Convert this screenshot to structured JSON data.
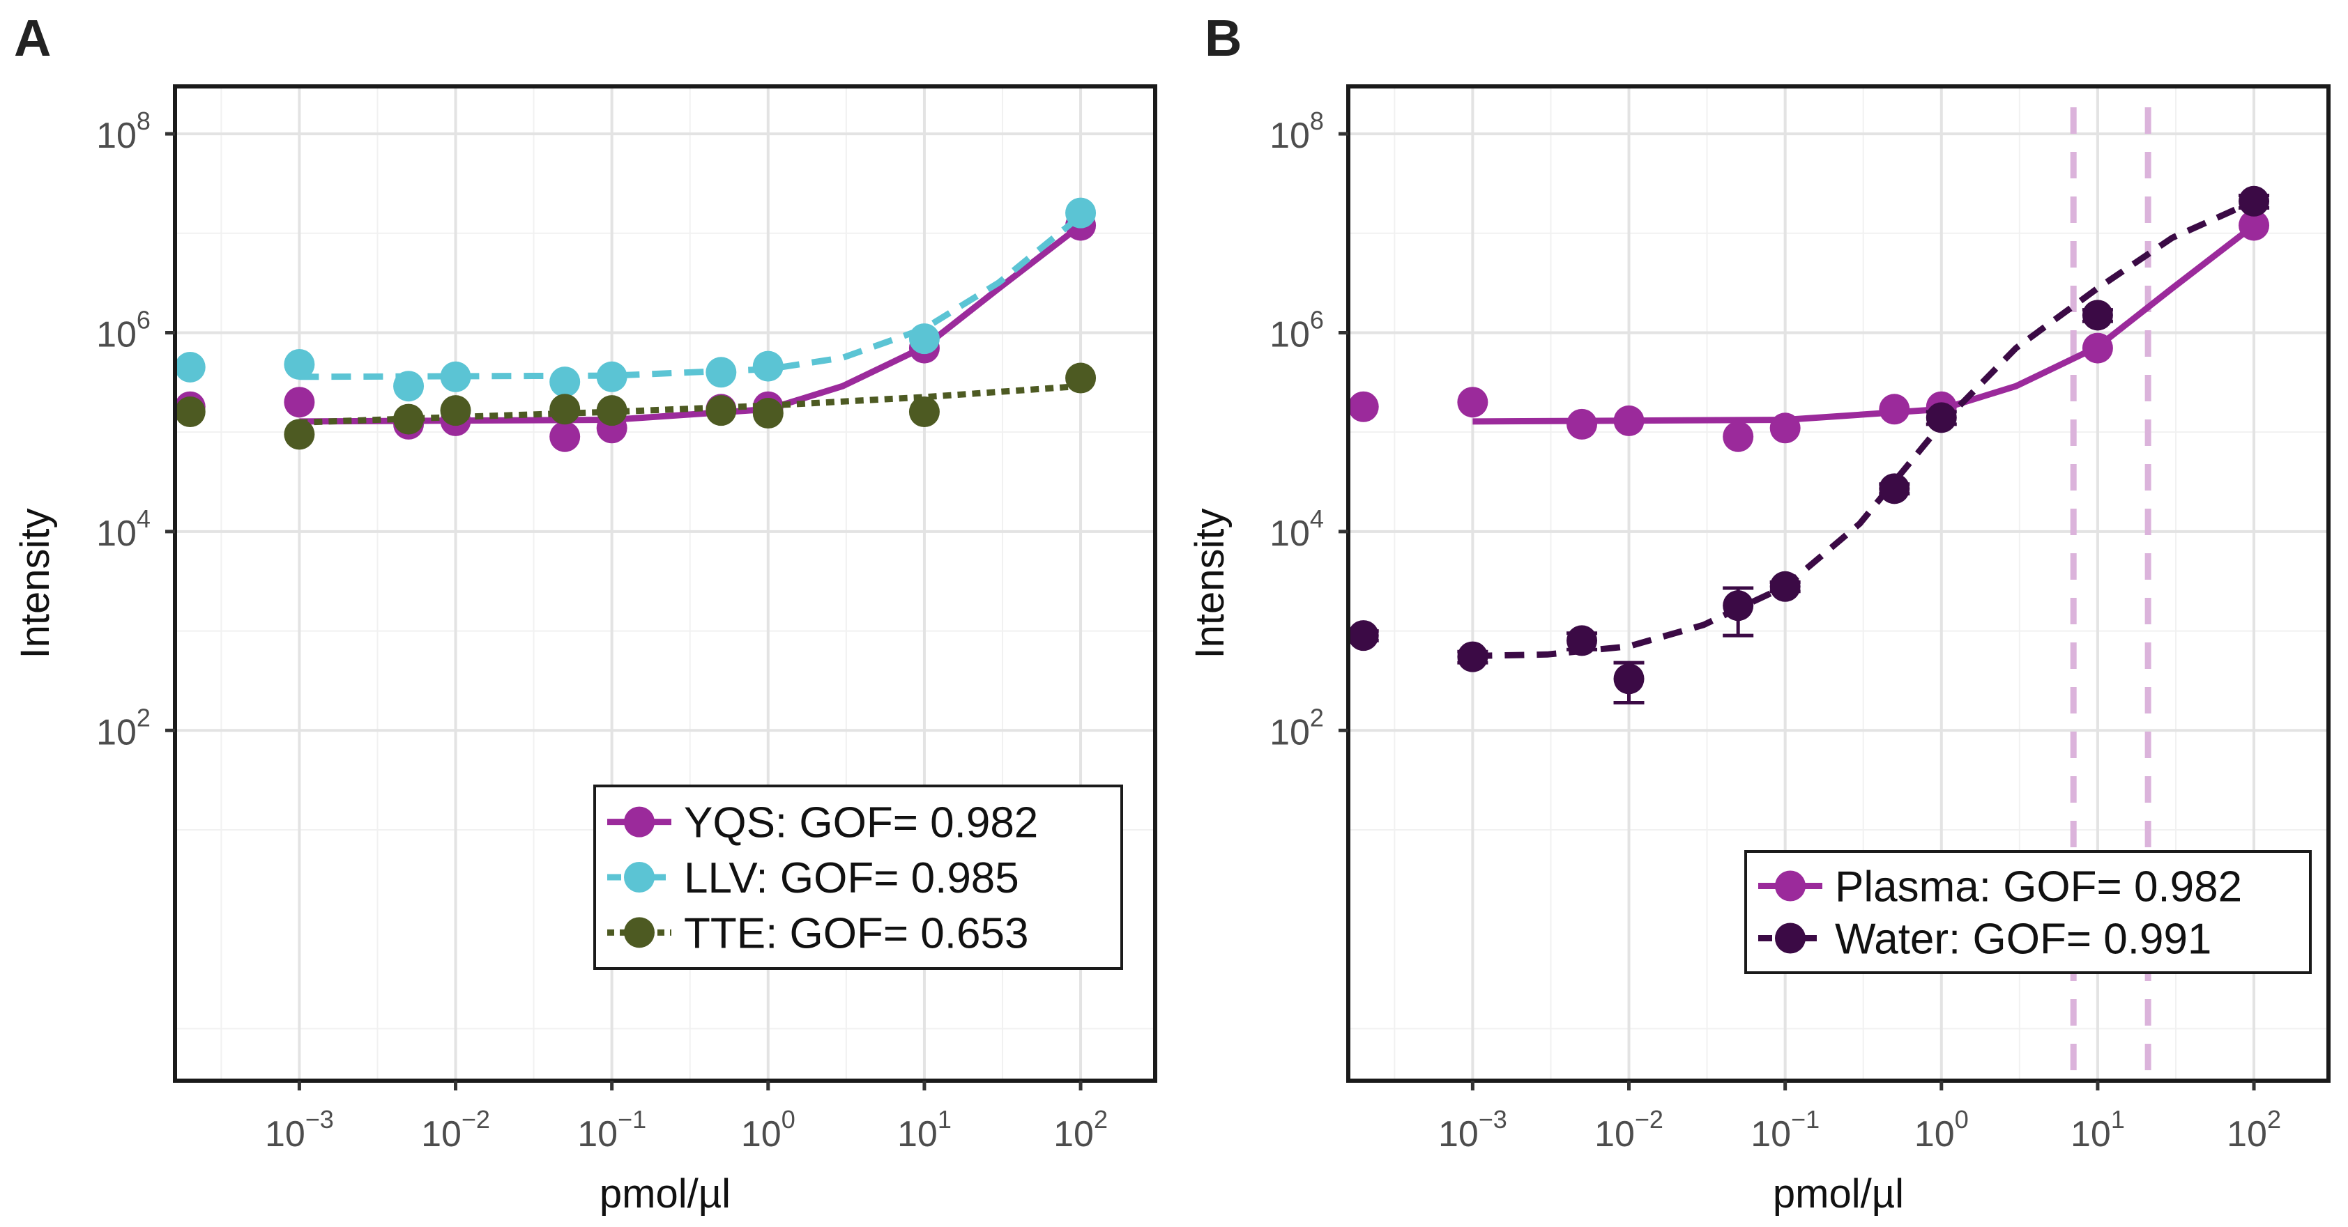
{
  "chart_data": [
    {
      "panel_label": "A",
      "type": "scatter",
      "xlabel": "pmol/µl",
      "ylabel": "Intensity",
      "xscale": "log10",
      "yscale": "log10",
      "xlim": [
        0.00016,
        300
      ],
      "ylim": [
        0.03,
        300000000
      ],
      "x_tick_exponents": [
        "-3",
        "-2",
        "-1",
        "0",
        "1",
        "2"
      ],
      "y_tick_exponents": [
        "2",
        "4",
        "6",
        "8"
      ],
      "legend_position": "bottom-right",
      "series": [
        {
          "name": "YQS",
          "label": "YQS: GOF= 0.982",
          "color": "#9b2a9b",
          "line_style": "solid",
          "points": [
            [
              0.0002,
              180000
            ],
            [
              0.001,
              200000
            ],
            [
              0.005,
              120000
            ],
            [
              0.01,
              130000
            ],
            [
              0.05,
              90000
            ],
            [
              0.1,
              110000
            ],
            [
              0.5,
              170000
            ],
            [
              1,
              180000
            ],
            [
              10,
              700000
            ],
            [
              100,
              12000000
            ]
          ],
          "fit": [
            [
              0.001,
              128000
            ],
            [
              0.1,
              133000
            ],
            [
              1,
              170000
            ],
            [
              3,
              290000
            ],
            [
              10,
              720000
            ],
            [
              30,
              2800000
            ],
            [
              100,
              12000000
            ]
          ]
        },
        {
          "name": "LLV",
          "label": "LLV: GOF= 0.985",
          "color": "#5bc4d4",
          "line_style": "dashed",
          "points": [
            [
              0.0002,
              450000
            ],
            [
              0.001,
              480000
            ],
            [
              0.005,
              290000
            ],
            [
              0.01,
              360000
            ],
            [
              0.05,
              320000
            ],
            [
              0.1,
              360000
            ],
            [
              0.5,
              400000
            ],
            [
              1,
              460000
            ],
            [
              10,
              870000
            ],
            [
              100,
              16000000
            ]
          ],
          "fit": [
            [
              0.001,
              360000
            ],
            [
              0.1,
              370000
            ],
            [
              1,
              430000
            ],
            [
              3,
              560000
            ],
            [
              10,
              1100000
            ],
            [
              30,
              3200000
            ],
            [
              100,
              15000000
            ]
          ]
        },
        {
          "name": "TTE",
          "label": "TTE: GOF= 0.653",
          "color": "#4d5a22",
          "line_style": "dotted",
          "points": [
            [
              0.0002,
              160000
            ],
            [
              0.001,
              95000
            ],
            [
              0.005,
              135000
            ],
            [
              0.01,
              165000
            ],
            [
              0.05,
              170000
            ],
            [
              0.1,
              165000
            ],
            [
              0.5,
              165000
            ],
            [
              1,
              155000
            ],
            [
              10,
              160000
            ],
            [
              100,
              350000
            ]
          ],
          "fit": [
            [
              0.001,
              125000
            ],
            [
              0.01,
              142000
            ],
            [
              0.1,
              160000
            ],
            [
              1,
              185000
            ],
            [
              10,
              225000
            ],
            [
              100,
              290000
            ]
          ]
        }
      ]
    },
    {
      "panel_label": "B",
      "type": "scatter",
      "xlabel": "pmol/µl",
      "ylabel": "Intensity",
      "xscale": "log10",
      "yscale": "log10",
      "xlim": [
        0.00016,
        300
      ],
      "ylim": [
        0.03,
        300000000
      ],
      "x_tick_exponents": [
        "-3",
        "-2",
        "-1",
        "0",
        "1",
        "2"
      ],
      "y_tick_exponents": [
        "2",
        "4",
        "6",
        "8"
      ],
      "legend_position": "bottom-right",
      "vlines": [
        7,
        21
      ],
      "vline_color": "#dbb3db",
      "series": [
        {
          "name": "Plasma",
          "label": "Plasma: GOF= 0.982",
          "color": "#9b2a9b",
          "line_style": "solid",
          "points": [
            [
              0.0002,
              180000
            ],
            [
              0.001,
              200000
            ],
            [
              0.005,
              120000
            ],
            [
              0.01,
              130000
            ],
            [
              0.05,
              90000
            ],
            [
              0.1,
              110000
            ],
            [
              0.5,
              170000
            ],
            [
              1,
              180000
            ],
            [
              10,
              700000
            ],
            [
              100,
              12000000
            ]
          ],
          "fit": [
            [
              0.001,
              128000
            ],
            [
              0.1,
              133000
            ],
            [
              1,
              170000
            ],
            [
              3,
              290000
            ],
            [
              10,
              720000
            ],
            [
              30,
              2800000
            ],
            [
              100,
              12000000
            ]
          ]
        },
        {
          "name": "Water",
          "label": "Water: GOF= 0.991",
          "color": "#3b0a45",
          "line_style": "dashed",
          "points": [
            [
              0.0002,
              900
            ],
            [
              0.001,
              550
            ],
            [
              0.005,
              800
            ],
            [
              0.01,
              330
            ],
            [
              0.05,
              1800
            ],
            [
              0.1,
              2800
            ],
            [
              0.5,
              27000
            ],
            [
              1,
              140000
            ],
            [
              10,
              1500000
            ],
            [
              100,
              21000000
            ]
          ],
          "errors": [
            [
              0.0002,
              900,
              800,
              1000
            ],
            [
              0.001,
              550,
              480,
              620
            ],
            [
              0.005,
              800,
              650,
              950
            ],
            [
              0.01,
              330,
              190,
              480
            ],
            [
              0.05,
              1800,
              900,
              2700
            ],
            [
              0.1,
              2800,
              2500,
              3100
            ],
            [
              0.5,
              27000,
              24000,
              30000
            ],
            [
              1,
              140000,
              120000,
              160000
            ],
            [
              10,
              1500000,
              1300000,
              1700000
            ],
            [
              100,
              21000000,
              18000000,
              24000000
            ]
          ],
          "fit": [
            [
              0.001,
              560
            ],
            [
              0.003,
              580
            ],
            [
              0.01,
              700
            ],
            [
              0.03,
              1150
            ],
            [
              0.1,
              2800
            ],
            [
              0.3,
              12000
            ],
            [
              1,
              120000
            ],
            [
              3,
              700000
            ],
            [
              10,
              2800000
            ],
            [
              30,
              9000000
            ],
            [
              100,
              21000000
            ]
          ]
        }
      ]
    }
  ]
}
